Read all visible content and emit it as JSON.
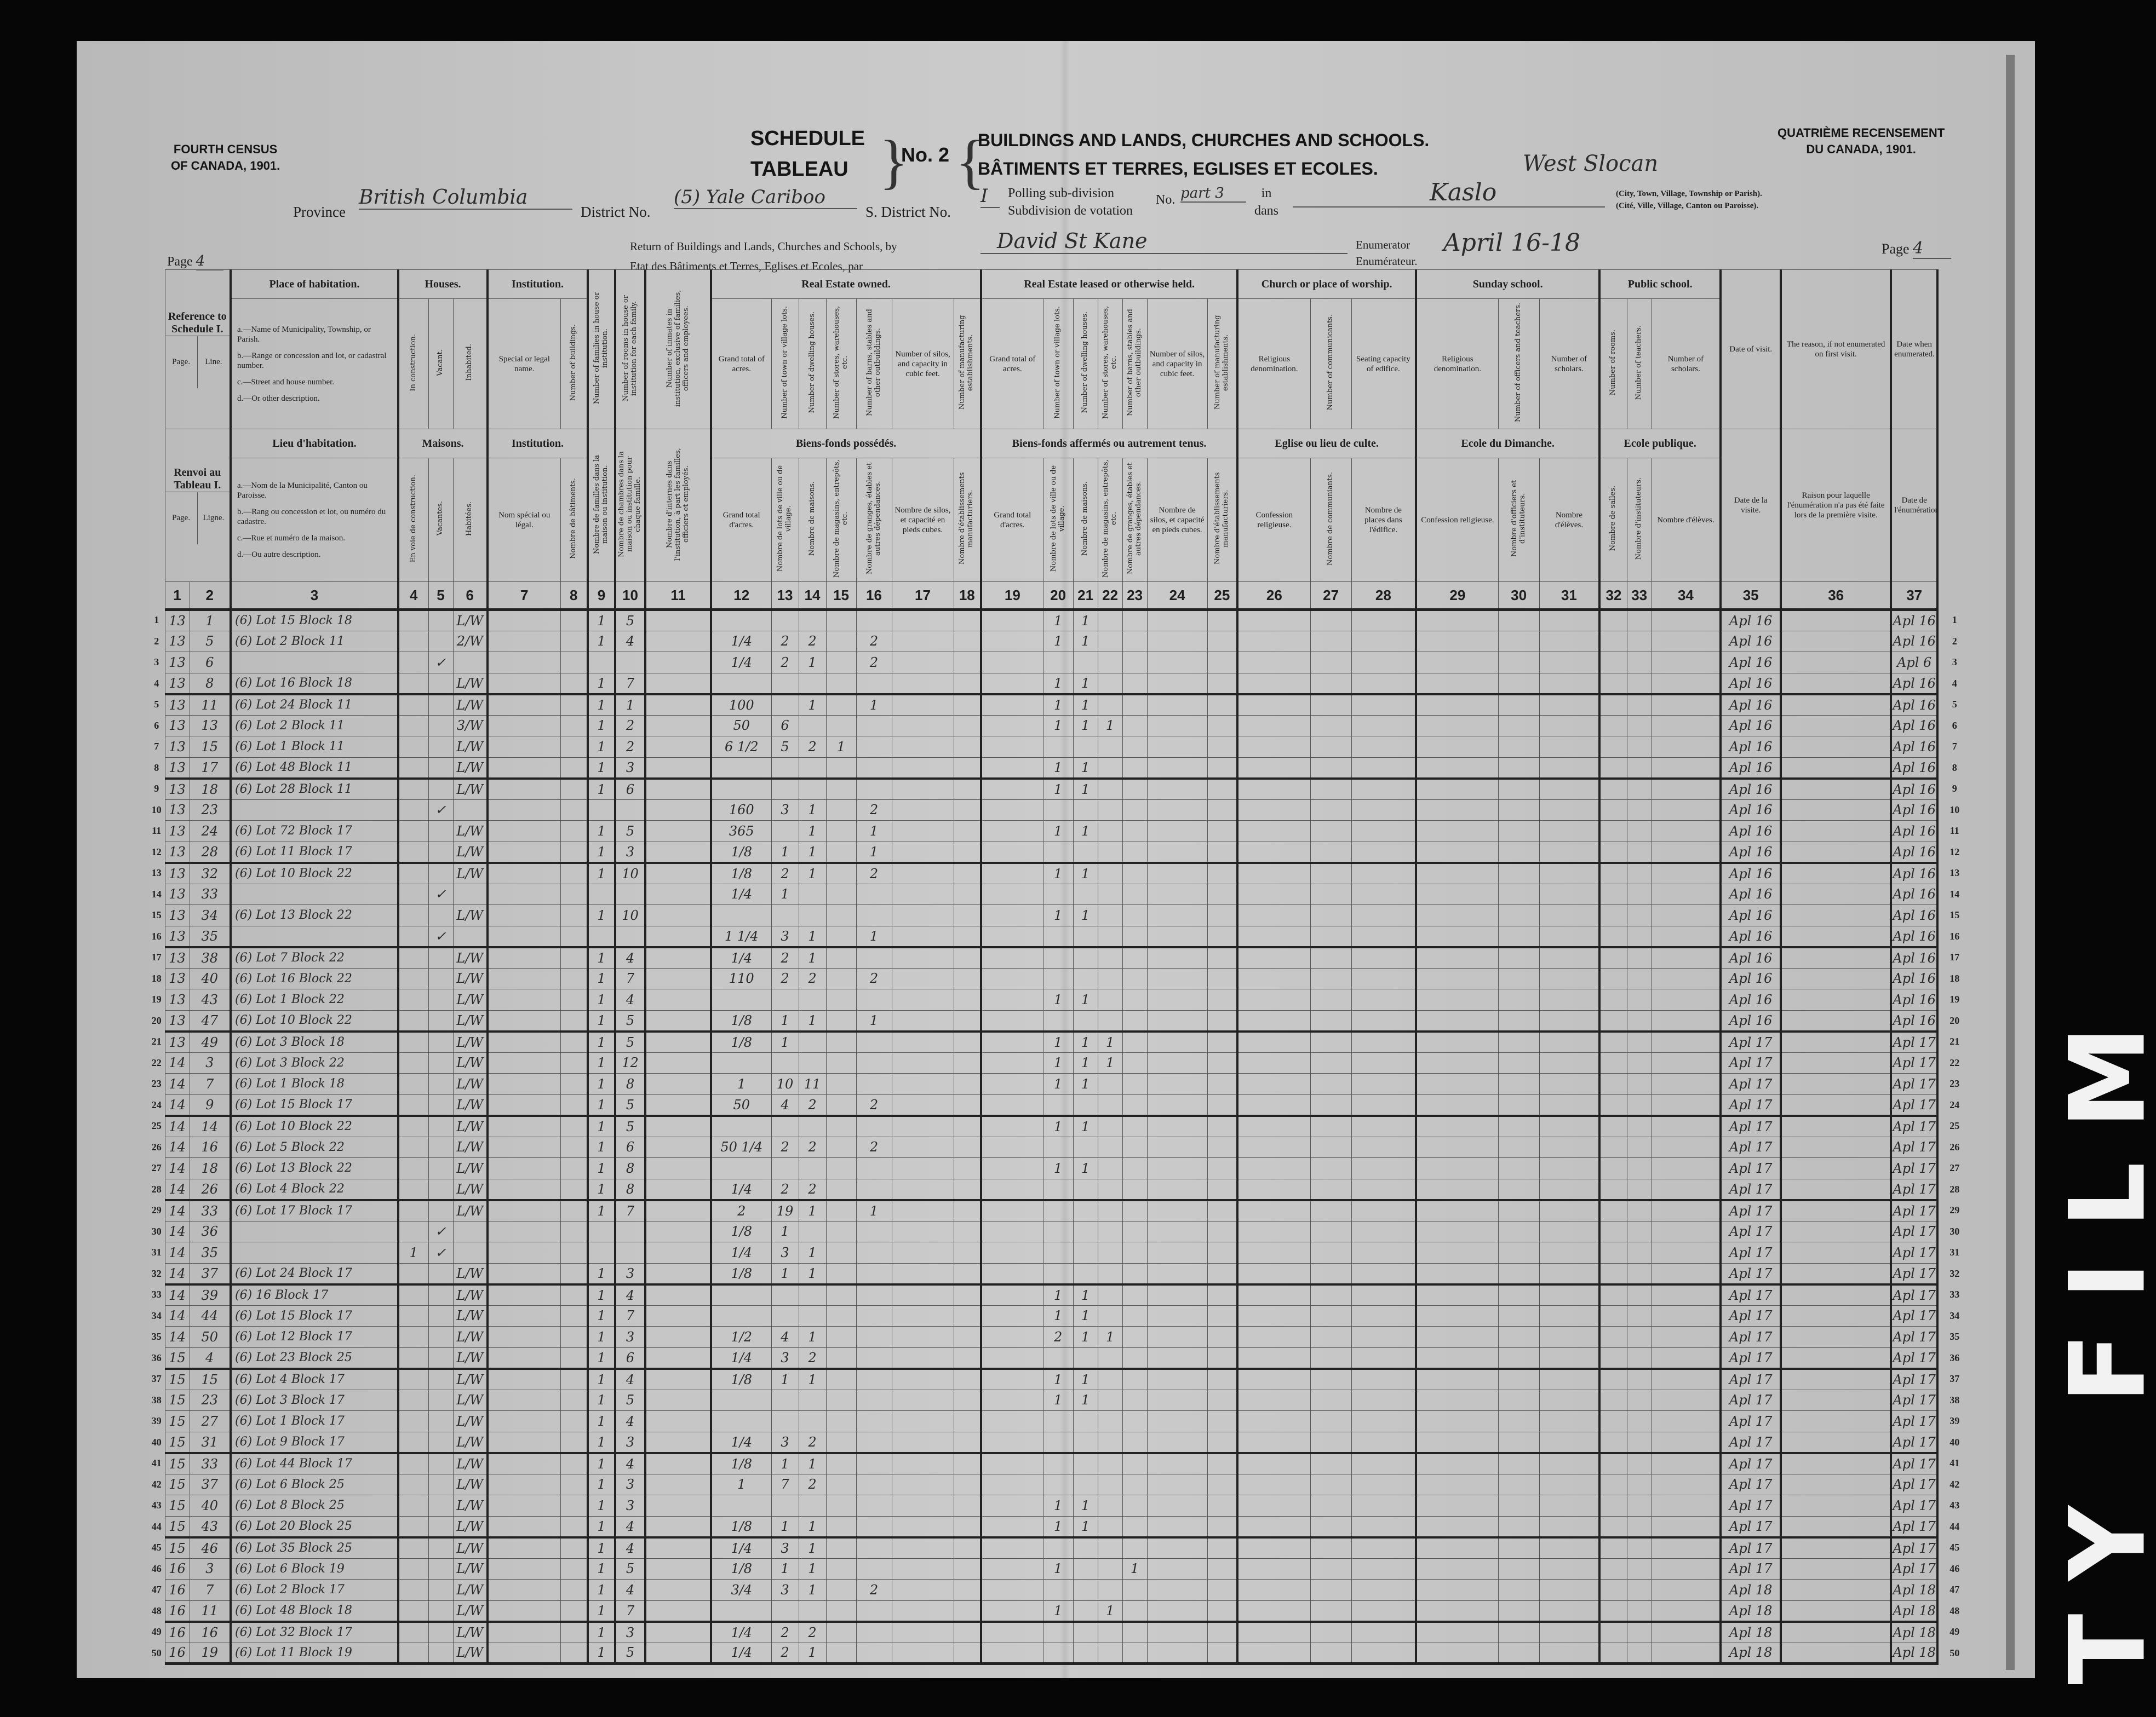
{
  "header": {
    "left_title": [
      "FOURTH CENSUS",
      "OF CANADA, 1901."
    ],
    "right_title": [
      "QUATRIÈME RECENSEMENT",
      "DU CANADA, 1901."
    ],
    "schedule": "SCHEDULE",
    "tableau": "TABLEAU",
    "number": "No. 2",
    "title_en": "BUILDINGS AND LANDS, CHURCHES AND SCHOOLS.",
    "title_fr": "BÂTIMENTS ET TERRES, EGLISES ET ECOLES.",
    "province_label": "Province",
    "province_value": "British Columbia",
    "district_label": "District No.",
    "district_value": "(5) Yale Cariboo",
    "sub_district_label": "S. District No.",
    "sub_district_value": "I",
    "polling_en": "Polling sub-division",
    "polling_fr": "Subdivision de votation",
    "no_label": "No.",
    "polling_value": "part 3",
    "in_en": "in",
    "in_fr": "dans",
    "place_value_1": "West Slocan",
    "place_value_2": "Kaslo",
    "place_hint_en": "(City, Town, Village, Township or Parish).",
    "place_hint_fr": "(Cité, Ville, Village, Canton ou Paroisse).",
    "return_en": "Return of Buildings and Lands, Churches and Schools, by",
    "return_fr": "Etat des Bâtiments et Terres, Eglises et Ecoles, par",
    "enumerator_value": "David St Kane",
    "enumerator_en": "Enumerator",
    "enumerator_fr": "Enumérateur.",
    "dates_value": "April 16-18",
    "page_label": "Page",
    "page_value": "4"
  },
  "film_marker": "TY FILM",
  "groups": [
    {
      "id": "ref",
      "cols": [
        1,
        2
      ],
      "en": "Reference to Schedule I.",
      "fr": "Renvoi au Tableau I."
    },
    {
      "id": "place",
      "cols": [
        3
      ],
      "en": "Place of habitation.",
      "fr": "Lieu d'habitation."
    },
    {
      "id": "houses",
      "cols": [
        4,
        5,
        6
      ],
      "en": "Houses.",
      "fr": "Maisons."
    },
    {
      "id": "institution",
      "cols": [
        7,
        8
      ],
      "en": "Institution.",
      "fr": "Institution."
    },
    {
      "id": "owned",
      "cols": [
        12,
        13,
        14,
        15,
        16,
        17,
        18
      ],
      "en": "Real Estate owned.",
      "fr": "Biens-fonds possédés."
    },
    {
      "id": "leased",
      "cols": [
        19,
        20,
        21,
        22,
        23,
        24,
        25
      ],
      "en": "Real Estate leased or otherwise held.",
      "fr": "Biens-fonds affermés ou autrement tenus."
    },
    {
      "id": "church",
      "cols": [
        26,
        27,
        28
      ],
      "en": "Church or place of worship.",
      "fr": "Eglise ou lieu de culte."
    },
    {
      "id": "sunday",
      "cols": [
        29,
        30,
        31
      ],
      "en": "Sunday school.",
      "fr": "Ecole du Dimanche."
    },
    {
      "id": "public",
      "cols": [
        32,
        33,
        34
      ],
      "en": "Public school.",
      "fr": "Ecole publique."
    }
  ],
  "columns": [
    {
      "num": "1",
      "en": "Page.",
      "fr": "Page."
    },
    {
      "num": "2",
      "en": "Line.",
      "fr": "Ligne."
    },
    {
      "num": "3",
      "list_en": [
        "a.—Name of Municipality, Township, or Parish.",
        "b.—Range or concession and lot, or cadastral number.",
        "c.—Street and house number.",
        "d.—Or other description."
      ],
      "list_fr": [
        "a.—Nom de la Municipalité, Canton ou Paroisse.",
        "b.—Rang ou concession et lot, ou numéro du cadastre.",
        "c.—Rue et numéro de la maison.",
        "d.—Ou autre description."
      ]
    },
    {
      "num": "4",
      "en": "In construction.",
      "fr": "En voie de construction.",
      "vertical": true
    },
    {
      "num": "5",
      "en": "Vacant.",
      "fr": "Vacantes.",
      "vertical": true
    },
    {
      "num": "6",
      "en": "Inhabited.",
      "fr": "Habitées.",
      "vertical": true
    },
    {
      "num": "7",
      "en": "Special or legal name.",
      "fr": "Nom spécial ou légal."
    },
    {
      "num": "8",
      "en": "Number of buildings.",
      "fr": "Nombre de bâtiments.",
      "vertical": true
    },
    {
      "num": "9",
      "en": "Number of families in house or institution.",
      "fr": "Nombre de familles dans la maison ou institution.",
      "vertical": true
    },
    {
      "num": "10",
      "en": "Number of rooms in house or institution for each family.",
      "fr": "Nombre de chambres dans la maison ou institution pour chaque famille.",
      "vertical": true
    },
    {
      "num": "11",
      "en": "Number of inmates in institution, exclusive of families, officers and employees.",
      "fr": "Nombre d'internes dans l'institution, à part les familles, officiers et employés.",
      "vertical": true
    },
    {
      "num": "12",
      "en": "Grand total of acres.",
      "fr": "Grand total d'acres."
    },
    {
      "num": "13",
      "en": "Number of town or village lots.",
      "fr": "Nombre de lots de ville ou de village.",
      "vertical": true
    },
    {
      "num": "14",
      "en": "Number of dwelling houses.",
      "fr": "Nombre de maisons.",
      "vertical": true
    },
    {
      "num": "15",
      "en": "Number of stores, warehouses, etc.",
      "fr": "Nombre de magasins, entrepôts, etc.",
      "vertical": true
    },
    {
      "num": "16",
      "en": "Number of barns, stables and other outbuildings.",
      "fr": "Nombre de granges, étables et autres dépendances.",
      "vertical": true
    },
    {
      "num": "17",
      "en": "Number of silos, and capacity in cubic feet.",
      "fr": "Nombre de silos, et capacité en pieds cubes."
    },
    {
      "num": "18",
      "en": "Number of manufacturing establishments.",
      "fr": "Nombre d'établissements manufacturiers.",
      "vertical": true
    },
    {
      "num": "19",
      "en": "Grand total of acres.",
      "fr": "Grand total d'acres."
    },
    {
      "num": "20",
      "en": "Number of town or village lots.",
      "fr": "Nombre de lots de ville ou de village.",
      "vertical": true
    },
    {
      "num": "21",
      "en": "Number of dwelling houses.",
      "fr": "Nombre de maisons.",
      "vertical": true
    },
    {
      "num": "22",
      "en": "Number of stores, warehouses, etc.",
      "fr": "Nombre de magasins, entrepôts, etc.",
      "vertical": true
    },
    {
      "num": "23",
      "en": "Number of barns, stables and other outbuildings.",
      "fr": "Nombre de granges, étables et autres dépendances.",
      "vertical": true
    },
    {
      "num": "24",
      "en": "Number of silos, and capacity in cubic feet.",
      "fr": "Nombre de silos, et capacité en pieds cubes."
    },
    {
      "num": "25",
      "en": "Number of manufacturing establishments.",
      "fr": "Nombre d'établissements manufacturiers.",
      "vertical": true
    },
    {
      "num": "26",
      "en": "Religious denomination.",
      "fr": "Confession religieuse."
    },
    {
      "num": "27",
      "en": "Number of communicants.",
      "fr": "Nombre de communiants.",
      "vertical": true
    },
    {
      "num": "28",
      "en": "Seating capacity of edifice.",
      "fr": "Nombre de places dans l'édifice."
    },
    {
      "num": "29",
      "en": "Religious denomination.",
      "fr": "Confession religieuse."
    },
    {
      "num": "30",
      "en": "Number of officers and teachers.",
      "fr": "Nombre d'officiers et d'instituteurs.",
      "vertical": true
    },
    {
      "num": "31",
      "en": "Number of scholars.",
      "fr": "Nombre d'élèves."
    },
    {
      "num": "32",
      "en": "Number of rooms.",
      "fr": "Nombre de salles.",
      "vertical": true
    },
    {
      "num": "33",
      "en": "Number of teachers.",
      "fr": "Nombre d'instituteurs.",
      "vertical": true
    },
    {
      "num": "34",
      "en": "Number of scholars.",
      "fr": "Nombre d'élèves."
    },
    {
      "num": "35",
      "en": "Date of visit.",
      "fr": "Date de la visite."
    },
    {
      "num": "36",
      "en": "The reason, if not enumerated on first visit.",
      "fr": "Raison pour laquelle l'énumération n'a pas été faite lors de la première visite."
    },
    {
      "num": "37",
      "en": "Date when enumerated.",
      "fr": "Date de l'énumération."
    }
  ],
  "rows": [
    {
      "1": "13",
      "2": "1",
      "3": "(6) Lot 15 Block 18",
      "6": "L/W",
      "9": "1",
      "10": "5",
      "20": "1",
      "21": "1",
      "35": "Apl 16",
      "37": "Apl 16"
    },
    {
      "1": "13",
      "2": "5",
      "3": "(6) Lot 2 Block 11",
      "6": "2/W",
      "9": "1",
      "10": "4",
      "12": "1/4",
      "13": "2",
      "14": "2",
      "16": "2",
      "20": "1",
      "21": "1",
      "35": "Apl 16",
      "37": "Apl 16"
    },
    {
      "1": "13",
      "2": "6",
      "5": "✓",
      "12": "1/4",
      "13": "2",
      "14": "1",
      "16": "2",
      "35": "Apl 16",
      "37": "Apl 6"
    },
    {
      "1": "13",
      "2": "8",
      "3": "(6) Lot 16 Block 18",
      "6": "L/W",
      "9": "1",
      "10": "7",
      "20": "1",
      "21": "1",
      "35": "Apl 16",
      "37": "Apl 16"
    },
    {
      "1": "13",
      "2": "11",
      "3": "(6) Lot 24 Block 11",
      "6": "L/W",
      "9": "1",
      "10": "1",
      "12": "100",
      "14": "1",
      "16": "1",
      "20": "1",
      "21": "1",
      "35": "Apl 16",
      "37": "Apl 16"
    },
    {
      "1": "13",
      "2": "13",
      "3": "(6) Lot 2 Block 11",
      "6": "3/W",
      "9": "1",
      "10": "2",
      "12": "50",
      "13": "6",
      "20": "1",
      "21": "1",
      "22": "1",
      "35": "Apl 16",
      "37": "Apl 16"
    },
    {
      "1": "13",
      "2": "15",
      "3": "(6) Lot 1 Block 11",
      "6": "L/W",
      "9": "1",
      "10": "2",
      "12": "6 1/2",
      "13": "5",
      "14": "2",
      "15": "1",
      "35": "Apl 16",
      "37": "Apl 16"
    },
    {
      "1": "13",
      "2": "17",
      "3": "(6) Lot 48 Block 11",
      "6": "L/W",
      "9": "1",
      "10": "3",
      "20": "1",
      "21": "1",
      "35": "Apl 16",
      "37": "Apl 16"
    },
    {
      "1": "13",
      "2": "18",
      "3": "(6) Lot 28 Block 11",
      "6": "L/W",
      "9": "1",
      "10": "6",
      "20": "1",
      "21": "1",
      "35": "Apl 16",
      "37": "Apl 16"
    },
    {
      "1": "13",
      "2": "23",
      "5": "✓",
      "12": "160",
      "13": "3",
      "14": "1",
      "16": "2",
      "35": "Apl 16",
      "37": "Apl 16"
    },
    {
      "1": "13",
      "2": "24",
      "3": "(6) Lot 72 Block 17",
      "6": "L/W",
      "9": "1",
      "10": "5",
      "12": "365",
      "14": "1",
      "16": "1",
      "20": "1",
      "21": "1",
      "35": "Apl 16",
      "37": "Apl 16"
    },
    {
      "1": "13",
      "2": "28",
      "3": "(6) Lot 11 Block 17",
      "6": "L/W",
      "9": "1",
      "10": "3",
      "12": "1/8",
      "13": "1",
      "14": "1",
      "16": "1",
      "35": "Apl 16",
      "37": "Apl 16"
    },
    {
      "1": "13",
      "2": "32",
      "3": "(6) Lot 10 Block 22",
      "6": "L/W",
      "9": "1",
      "10": "10",
      "12": "1/8",
      "13": "2",
      "14": "1",
      "16": "2",
      "20": "1",
      "21": "1",
      "35": "Apl 16",
      "37": "Apl 16"
    },
    {
      "1": "13",
      "2": "33",
      "5": "✓",
      "12": "1/4",
      "13": "1",
      "35": "Apl 16",
      "37": "Apl 16"
    },
    {
      "1": "13",
      "2": "34",
      "3": "(6) Lot 13 Block 22",
      "6": "L/W",
      "9": "1",
      "10": "10",
      "20": "1",
      "21": "1",
      "35": "Apl 16",
      "37": "Apl 16"
    },
    {
      "1": "13",
      "2": "35",
      "5": "✓",
      "12": "1 1/4",
      "13": "3",
      "14": "1",
      "16": "1",
      "35": "Apl 16",
      "37": "Apl 16"
    },
    {
      "1": "13",
      "2": "38",
      "3": "(6) Lot 7 Block 22",
      "6": "L/W",
      "9": "1",
      "10": "4",
      "12": "1/4",
      "13": "2",
      "14": "1",
      "35": "Apl 16",
      "37": "Apl 16"
    },
    {
      "1": "13",
      "2": "40",
      "3": "(6) Lot 16 Block 22",
      "6": "L/W",
      "9": "1",
      "10": "7",
      "12": "110",
      "13": "2",
      "14": "2",
      "16": "2",
      "35": "Apl 16",
      "37": "Apl 16"
    },
    {
      "1": "13",
      "2": "43",
      "3": "(6) Lot 1 Block 22",
      "6": "L/W",
      "9": "1",
      "10": "4",
      "20": "1",
      "21": "1",
      "35": "Apl 16",
      "37": "Apl 16"
    },
    {
      "1": "13",
      "2": "47",
      "3": "(6) Lot 10 Block 22",
      "6": "L/W",
      "9": "1",
      "10": "5",
      "12": "1/8",
      "13": "1",
      "14": "1",
      "16": "1",
      "35": "Apl 16",
      "37": "Apl 16"
    },
    {
      "1": "13",
      "2": "49",
      "3": "(6) Lot 3 Block 18",
      "6": "L/W",
      "9": "1",
      "10": "5",
      "12": "1/8",
      "13": "1",
      "20": "1",
      "21": "1",
      "22": "1",
      "35": "Apl 17",
      "37": "Apl 17"
    },
    {
      "1": "14",
      "2": "3",
      "3": "(6) Lot 3 Block 22",
      "6": "L/W",
      "9": "1",
      "10": "12",
      "20": "1",
      "21": "1",
      "22": "1",
      "35": "Apl 17",
      "37": "Apl 17"
    },
    {
      "1": "14",
      "2": "7",
      "3": "(6) Lot 1 Block 18",
      "6": "L/W",
      "9": "1",
      "10": "8",
      "12": "1",
      "13": "10",
      "14": "11",
      "20": "1",
      "21": "1",
      "35": "Apl 17",
      "37": "Apl 17"
    },
    {
      "1": "14",
      "2": "9",
      "3": "(6) Lot 15 Block 17",
      "6": "L/W",
      "9": "1",
      "10": "5",
      "12": "50",
      "13": "4",
      "14": "2",
      "16": "2",
      "35": "Apl 17",
      "37": "Apl 17"
    },
    {
      "1": "14",
      "2": "14",
      "3": "(6) Lot 10 Block 22",
      "6": "L/W",
      "9": "1",
      "10": "5",
      "20": "1",
      "21": "1",
      "35": "Apl 17",
      "37": "Apl 17"
    },
    {
      "1": "14",
      "2": "16",
      "3": "(6) Lot 5 Block 22",
      "6": "L/W",
      "9": "1",
      "10": "6",
      "12": "50 1/4",
      "13": "2",
      "14": "2",
      "16": "2",
      "35": "Apl 17",
      "37": "Apl 17"
    },
    {
      "1": "14",
      "2": "18",
      "3": "(6) Lot 13 Block 22",
      "6": "L/W",
      "9": "1",
      "10": "8",
      "20": "1",
      "21": "1",
      "35": "Apl 17",
      "37": "Apl 17"
    },
    {
      "1": "14",
      "2": "26",
      "3": "(6) Lot 4 Block 22",
      "6": "L/W",
      "9": "1",
      "10": "8",
      "12": "1/4",
      "13": "2",
      "14": "2",
      "35": "Apl 17",
      "37": "Apl 17"
    },
    {
      "1": "14",
      "2": "33",
      "3": "(6) Lot 17 Block 17",
      "6": "L/W",
      "9": "1",
      "10": "7",
      "12": "2",
      "13": "19",
      "14": "1",
      "16": "1",
      "35": "Apl 17",
      "37": "Apl 17"
    },
    {
      "1": "14",
      "2": "36",
      "5": "✓",
      "12": "1/8",
      "13": "1",
      "35": "Apl 17",
      "37": "Apl 17"
    },
    {
      "1": "14",
      "2": "35",
      "4": "1",
      "5": "✓",
      "12": "1/4",
      "13": "3",
      "14": "1",
      "35": "Apl 17",
      "37": "Apl 17"
    },
    {
      "1": "14",
      "2": "37",
      "3": "(6) Lot 24 Block 17",
      "6": "L/W",
      "9": "1",
      "10": "3",
      "12": "1/8",
      "13": "1",
      "14": "1",
      "35": "Apl 17",
      "37": "Apl 17"
    },
    {
      "1": "14",
      "2": "39",
      "3": "(6) 16 Block 17",
      "6": "L/W",
      "9": "1",
      "10": "4",
      "20": "1",
      "21": "1",
      "35": "Apl 17",
      "37": "Apl 17"
    },
    {
      "1": "14",
      "2": "44",
      "3": "(6) Lot 15 Block 17",
      "6": "L/W",
      "9": "1",
      "10": "7",
      "20": "1",
      "21": "1",
      "35": "Apl 17",
      "37": "Apl 17"
    },
    {
      "1": "14",
      "2": "50",
      "3": "(6) Lot 12 Block 17",
      "6": "L/W",
      "9": "1",
      "10": "3",
      "12": "1/2",
      "13": "4",
      "14": "1",
      "20": "2",
      "21": "1",
      "22": "1",
      "35": "Apl 17",
      "37": "Apl 17"
    },
    {
      "1": "15",
      "2": "4",
      "3": "(6) Lot 23 Block 25",
      "6": "L/W",
      "9": "1",
      "10": "6",
      "12": "1/4",
      "13": "3",
      "14": "2",
      "35": "Apl 17",
      "37": "Apl 17"
    },
    {
      "1": "15",
      "2": "15",
      "3": "(6) Lot 4 Block 17",
      "6": "L/W",
      "9": "1",
      "10": "4",
      "12": "1/8",
      "13": "1",
      "14": "1",
      "20": "1",
      "21": "1",
      "35": "Apl 17",
      "37": "Apl 17"
    },
    {
      "1": "15",
      "2": "23",
      "3": "(6) Lot 3 Block 17",
      "6": "L/W",
      "9": "1",
      "10": "5",
      "20": "1",
      "21": "1",
      "35": "Apl 17",
      "37": "Apl 17"
    },
    {
      "1": "15",
      "2": "27",
      "3": "(6) Lot 1 Block 17",
      "6": "L/W",
      "9": "1",
      "10": "4",
      "35": "Apl 17",
      "37": "Apl 17"
    },
    {
      "1": "15",
      "2": "31",
      "3": "(6) Lot 9 Block 17",
      "6": "L/W",
      "9": "1",
      "10": "3",
      "12": "1/4",
      "13": "3",
      "14": "2",
      "35": "Apl 17",
      "37": "Apl 17"
    },
    {
      "1": "15",
      "2": "33",
      "3": "(6) Lot 44 Block 17",
      "6": "L/W",
      "9": "1",
      "10": "4",
      "12": "1/8",
      "13": "1",
      "14": "1",
      "35": "Apl 17",
      "37": "Apl 17"
    },
    {
      "1": "15",
      "2": "37",
      "3": "(6) Lot 6 Block 25",
      "6": "L/W",
      "9": "1",
      "10": "3",
      "12": "1",
      "13": "7",
      "14": "2",
      "35": "Apl 17",
      "37": "Apl 17"
    },
    {
      "1": "15",
      "2": "40",
      "3": "(6) Lot 8 Block 25",
      "6": "L/W",
      "9": "1",
      "10": "3",
      "20": "1",
      "21": "1",
      "35": "Apl 17",
      "37": "Apl 17"
    },
    {
      "1": "15",
      "2": "43",
      "3": "(6) Lot 20 Block 25",
      "6": "L/W",
      "9": "1",
      "10": "4",
      "12": "1/8",
      "13": "1",
      "14": "1",
      "20": "1",
      "21": "1",
      "35": "Apl 17",
      "37": "Apl 17"
    },
    {
      "1": "15",
      "2": "46",
      "3": "(6) Lot 35 Block 25",
      "6": "L/W",
      "9": "1",
      "10": "4",
      "12": "1/4",
      "13": "3",
      "14": "1",
      "35": "Apl 17",
      "37": "Apl 17"
    },
    {
      "1": "16",
      "2": "3",
      "3": "(6) Lot 6 Block 19",
      "6": "L/W",
      "9": "1",
      "10": "5",
      "12": "1/8",
      "13": "1",
      "14": "1",
      "20": "1",
      "23": "1",
      "35": "Apl 17",
      "37": "Apl 17"
    },
    {
      "1": "16",
      "2": "7",
      "3": "(6) Lot 2 Block 17",
      "6": "L/W",
      "9": "1",
      "10": "4",
      "12": "3/4",
      "13": "3",
      "14": "1",
      "16": "2",
      "35": "Apl 18",
      "37": "Apl 18"
    },
    {
      "1": "16",
      "2": "11",
      "3": "(6) Lot 48 Block 18",
      "6": "L/W",
      "9": "1",
      "10": "7",
      "20": "1",
      "22": "1",
      "35": "Apl 18",
      "37": "Apl 18"
    },
    {
      "1": "16",
      "2": "16",
      "3": "(6) Lot 32 Block 17",
      "6": "L/W",
      "9": "1",
      "10": "3",
      "12": "1/4",
      "13": "2",
      "14": "2",
      "35": "Apl 18",
      "37": "Apl 18"
    },
    {
      "1": "16",
      "2": "19",
      "3": "(6) Lot 11 Block 19",
      "6": "L/W",
      "9": "1",
      "10": "5",
      "12": "1/4",
      "13": "2",
      "14": "1",
      "35": "Apl 18",
      "37": "Apl 18"
    }
  ]
}
